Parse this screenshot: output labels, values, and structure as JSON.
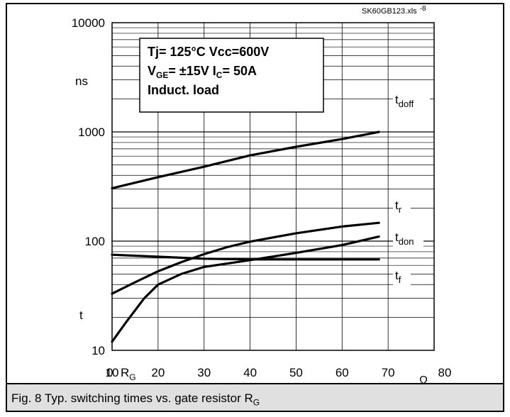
{
  "file_tag": "SK60GB123.xls",
  "fig_number": "-8",
  "caption": "Fig. 8 Typ. switching times vs. gate resistor R",
  "caption_sub": "G",
  "conditions": {
    "line1": "Tj= 125°C   Vcc=600V",
    "line2_a": "V",
    "line2_a_sub": "GE",
    "line2_b": "= ±15V   I",
    "line2_b_sub": "C",
    "line2_c": "= 50A",
    "line3": "Induct. load"
  },
  "chart_data": {
    "type": "line",
    "ylabel_unit": "ns",
    "ylabel_symbol": "t",
    "xlabel_symbol": "R",
    "xlabel_symbol_sub": "G",
    "xlabel_unit": "Ω",
    "x_ticks": [
      "0",
      "10",
      "20",
      "30",
      "40",
      "50",
      "60",
      "70",
      "80"
    ],
    "y_ticks": [
      "10",
      "100",
      "1000",
      "10000"
    ],
    "xlim": [
      0,
      80
    ],
    "ylim": [
      10,
      10000
    ],
    "y_scale": "log",
    "x_domain": [
      10,
      80
    ],
    "grid": true,
    "series": [
      {
        "name": "t",
        "sub": "doff",
        "x": [
          10,
          20,
          30,
          40,
          50,
          60,
          68
        ],
        "y": [
          305,
          385,
          480,
          610,
          730,
          860,
          1000
        ]
      },
      {
        "name": "t",
        "sub": "r",
        "x": [
          10,
          15,
          20,
          25,
          30,
          35,
          40,
          50,
          60,
          68
        ],
        "y": [
          33,
          42,
          53,
          64,
          76,
          88,
          99,
          118,
          136,
          147
        ]
      },
      {
        "name": "t",
        "sub": "don",
        "x": [
          10,
          13,
          17,
          20,
          25,
          30,
          40,
          50,
          60,
          68
        ],
        "y": [
          12,
          18,
          30,
          40,
          50,
          58,
          67,
          78,
          92,
          110
        ]
      },
      {
        "name": "t",
        "sub": "f",
        "x": [
          10,
          20,
          30,
          40,
          50,
          60,
          68
        ],
        "y": [
          75,
          72,
          69,
          68,
          68,
          68,
          68
        ]
      }
    ]
  }
}
